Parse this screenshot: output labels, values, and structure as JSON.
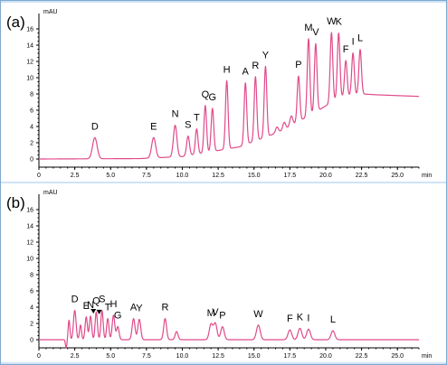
{
  "chart_data": [
    {
      "type": "line",
      "panel_label": "(a)",
      "y_unit": "mAU",
      "x_unit": "min",
      "xlim": [
        0,
        26.5
      ],
      "ylim": [
        -1,
        17
      ],
      "x_ticks": [
        0,
        2.5,
        5.0,
        7.5,
        10.0,
        12.5,
        15.0,
        17.5,
        20.0,
        22.5,
        25.0
      ],
      "x_tick_labels": [
        "0",
        "2.5",
        "5.0",
        "7.5",
        "10.0",
        "12.5",
        "15.0",
        "17.5",
        "20.0",
        "22.5",
        "25.0"
      ],
      "y_ticks": [
        0,
        2,
        4,
        6,
        8,
        10,
        12,
        14,
        16
      ],
      "y_tick_labels": [
        "0",
        "2",
        "4",
        "6",
        "8",
        "10",
        "12",
        "14",
        "16"
      ],
      "baseline_points": [
        [
          0,
          0
        ],
        [
          7,
          0.05
        ],
        [
          10,
          0.3
        ],
        [
          14,
          1.5
        ],
        [
          17,
          3.5
        ],
        [
          19.5,
          6.0
        ],
        [
          21,
          7.6
        ],
        [
          22.5,
          8.0
        ],
        [
          23.5,
          7.9
        ],
        [
          26.5,
          7.7
        ]
      ],
      "peaks": [
        {
          "label": "D",
          "x": 3.9,
          "height": 2.6,
          "width": 0.16
        },
        {
          "label": "E",
          "x": 8.0,
          "height": 2.5,
          "width": 0.14
        },
        {
          "label": "N",
          "x": 9.5,
          "height": 3.9,
          "width": 0.12
        },
        {
          "label": "S",
          "x": 10.4,
          "height": 2.4,
          "width": 0.1
        },
        {
          "label": "T",
          "x": 11.0,
          "height": 3.1,
          "width": 0.09
        },
        {
          "label": "Q",
          "x": 11.6,
          "height": 5.8,
          "width": 0.09
        },
        {
          "label": "G",
          "x": 12.1,
          "height": 5.3,
          "width": 0.09
        },
        {
          "label": "H",
          "x": 13.1,
          "height": 8.4,
          "width": 0.09
        },
        {
          "label": "A",
          "x": 14.4,
          "height": 7.6,
          "width": 0.09
        },
        {
          "label": "R",
          "x": 15.1,
          "height": 7.9,
          "width": 0.09
        },
        {
          "label": "Y",
          "x": 15.8,
          "height": 8.7,
          "width": 0.09
        },
        {
          "label": "P",
          "x": 18.1,
          "height": 5.6,
          "width": 0.09
        },
        {
          "label": "M",
          "x": 18.8,
          "height": 9.5,
          "width": 0.09
        },
        {
          "label": "V",
          "x": 19.3,
          "height": 8.4,
          "width": 0.09
        },
        {
          "label": "W",
          "x": 20.4,
          "height": 8.6,
          "width": 0.09
        },
        {
          "label": "K",
          "x": 20.9,
          "height": 8.0,
          "width": 0.09
        },
        {
          "label": "F",
          "x": 21.4,
          "height": 4.4,
          "width": 0.09
        },
        {
          "label": "I",
          "x": 21.9,
          "height": 5.2,
          "width": 0.09
        },
        {
          "label": "L",
          "x": 22.4,
          "height": 5.5,
          "width": 0.09
        }
      ],
      "extra_peaks": [
        {
          "x": 16.6,
          "height": 0.7,
          "width": 0.1
        },
        {
          "x": 17.1,
          "height": 0.9,
          "width": 0.1
        },
        {
          "x": 17.6,
          "height": 1.2,
          "width": 0.1
        }
      ]
    },
    {
      "type": "line",
      "panel_label": "(b)",
      "y_unit": "mAU",
      "x_unit": "min",
      "xlim": [
        0,
        26.5
      ],
      "ylim": [
        -1,
        17
      ],
      "x_ticks": [
        0,
        2.5,
        5.0,
        7.5,
        10.0,
        12.5,
        15.0,
        17.5,
        20.0,
        22.5,
        25.0
      ],
      "x_tick_labels": [
        "0",
        "2.5",
        "5.0",
        "7.5",
        "10.0",
        "12.5",
        "15.0",
        "17.5",
        "20.0",
        "22.5",
        "25.0"
      ],
      "y_ticks": [
        0,
        2,
        4,
        6,
        8,
        10,
        12,
        14,
        16
      ],
      "y_tick_labels": [
        "0",
        "2",
        "4",
        "6",
        "8",
        "10",
        "12",
        "14",
        "16"
      ],
      "baseline_points": [
        [
          0,
          0
        ],
        [
          26.5,
          0
        ]
      ],
      "peaks": [
        {
          "label": "D",
          "x": 2.5,
          "height": 3.6,
          "width": 0.09
        },
        {
          "label": "E",
          "x": 3.3,
          "height": 2.8,
          "width": 0.08
        },
        {
          "label": "N",
          "x": 3.6,
          "height": 2.9,
          "width": 0.08
        },
        {
          "label": "Q",
          "x": 4.0,
          "height": 3.4,
          "width": 0.08
        },
        {
          "label": "S",
          "x": 4.4,
          "height": 3.6,
          "width": 0.08
        },
        {
          "label": "T",
          "x": 4.8,
          "height": 2.6,
          "width": 0.08
        },
        {
          "label": "H",
          "x": 5.2,
          "height": 3.0,
          "width": 0.09
        },
        {
          "label": "G",
          "x": 5.5,
          "height": 1.6,
          "width": 0.09
        },
        {
          "label": "A",
          "x": 6.6,
          "height": 2.6,
          "width": 0.1
        },
        {
          "label": "Y",
          "x": 7.0,
          "height": 2.5,
          "width": 0.1
        },
        {
          "label": "R",
          "x": 8.8,
          "height": 2.6,
          "width": 0.1
        },
        {
          "label": "M",
          "x": 12.0,
          "height": 1.9,
          "width": 0.12
        },
        {
          "label": "V",
          "x": 12.3,
          "height": 2.0,
          "width": 0.12
        },
        {
          "label": "P",
          "x": 12.8,
          "height": 1.6,
          "width": 0.12
        },
        {
          "label": "W",
          "x": 15.3,
          "height": 1.8,
          "width": 0.13
        },
        {
          "label": "F",
          "x": 17.5,
          "height": 1.2,
          "width": 0.13
        },
        {
          "label": "K",
          "x": 18.2,
          "height": 1.4,
          "width": 0.13
        },
        {
          "label": "I",
          "x": 18.8,
          "height": 1.3,
          "width": 0.13
        },
        {
          "label": "L",
          "x": 20.5,
          "height": 1.1,
          "width": 0.13
        }
      ],
      "extra_peaks": [
        {
          "x": 1.9,
          "height": -1.0,
          "width": 0.05
        },
        {
          "x": 2.1,
          "height": 2.4,
          "width": 0.06
        },
        {
          "x": 2.9,
          "height": 1.8,
          "width": 0.07
        },
        {
          "x": 9.6,
          "height": 1.0,
          "width": 0.1
        }
      ],
      "arrow_markers": [
        {
          "x": 3.8,
          "height": 3.0
        },
        {
          "x": 4.2,
          "height": 2.9
        }
      ]
    }
  ]
}
